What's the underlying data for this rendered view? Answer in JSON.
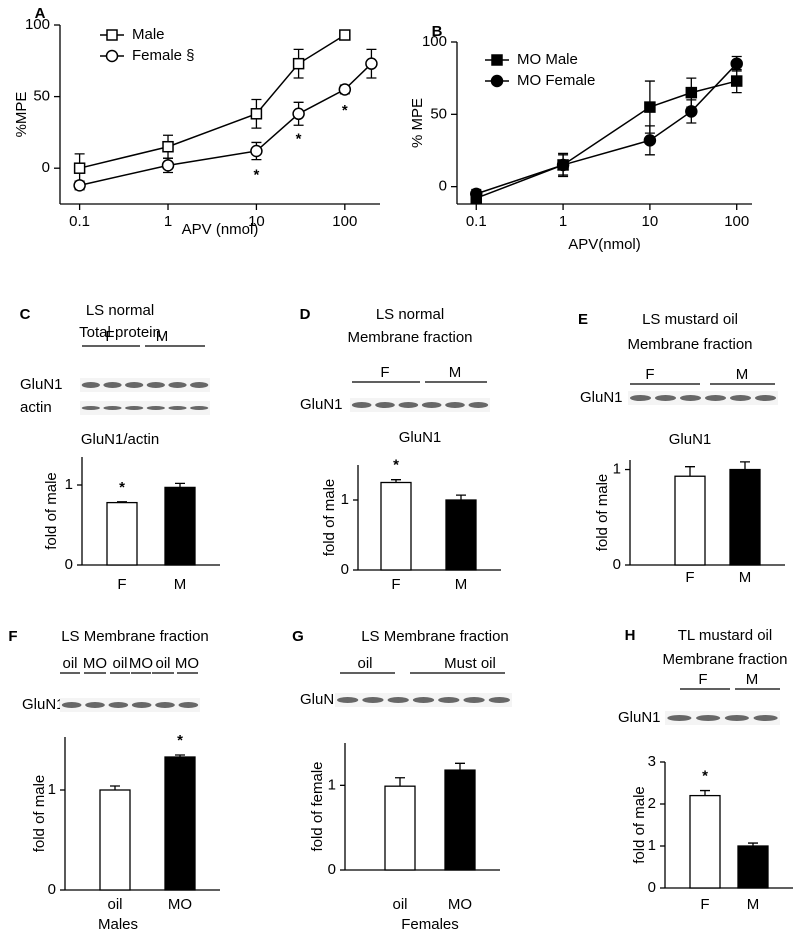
{
  "chart_data": [
    {
      "type": "line",
      "panel": "A",
      "xlabel": "APV (nmol)",
      "ylabel": "%MPE",
      "xscale": "log",
      "xlim": [
        0.06,
        250
      ],
      "xticks": [
        0.1,
        1,
        10,
        100
      ],
      "ylim": [
        -25,
        100
      ],
      "yticks": [
        0,
        50,
        100
      ],
      "series": [
        {
          "name": "Male",
          "marker": "square",
          "color": "#000000",
          "fill": "#ffffff",
          "x": [
            0.1,
            1,
            10,
            30,
            100
          ],
          "values": [
            0,
            15,
            38,
            73,
            93
          ],
          "errors": [
            10,
            8,
            10,
            10,
            2
          ]
        },
        {
          "name": "Female §",
          "marker": "circle",
          "color": "#000000",
          "fill": "#ffffff",
          "x": [
            0.1,
            1,
            10,
            30,
            100,
            200
          ],
          "values": [
            -12,
            2,
            12,
            38,
            55,
            73
          ],
          "errors": [
            3,
            5,
            6,
            8,
            3,
            10
          ]
        }
      ],
      "annotations": [
        {
          "text": "*",
          "x": 10,
          "y": -5
        },
        {
          "text": "*",
          "x": 30,
          "y": 20
        },
        {
          "text": "*",
          "x": 100,
          "y": 40
        }
      ]
    },
    {
      "type": "line",
      "panel": "B",
      "xlabel": "APV(nmol)",
      "ylabel": "% MPE",
      "xscale": "log",
      "xlim": [
        0.06,
        150
      ],
      "xticks": [
        0.1,
        1,
        10,
        100
      ],
      "ylim": [
        -12,
        100
      ],
      "yticks": [
        0,
        50,
        100
      ],
      "series": [
        {
          "name": "MO Male",
          "marker": "square",
          "color": "#000000",
          "fill": "#000000",
          "x": [
            0.1,
            1,
            10,
            30,
            100
          ],
          "values": [
            -8,
            15,
            55,
            65,
            73
          ],
          "errors": [
            3,
            8,
            18,
            10,
            8
          ]
        },
        {
          "name": "MO Female",
          "marker": "circle",
          "color": "#000000",
          "fill": "#000000",
          "x": [
            0.1,
            1,
            10,
            30,
            100
          ],
          "values": [
            -5,
            15,
            32,
            52,
            85
          ],
          "errors": [
            3,
            7,
            10,
            8,
            5
          ]
        }
      ]
    },
    {
      "type": "bar",
      "panel": "C",
      "title": "LS normal",
      "subtitle": "Total protein",
      "lanes": [
        "F",
        "M"
      ],
      "rows": [
        "GluN1",
        "actin"
      ],
      "chart_title": "GluN1/actin",
      "ylabel": "fold of male",
      "categories": [
        "F",
        "M"
      ],
      "values": [
        0.78,
        0.97
      ],
      "errors": [
        0.01,
        0.05
      ],
      "colors": [
        "#ffffff",
        "#000000"
      ],
      "ylim": [
        0,
        1.35
      ],
      "yticks": [
        0,
        1
      ],
      "annotations": [
        {
          "text": "*",
          "category": 0
        }
      ]
    },
    {
      "type": "bar",
      "panel": "D",
      "title": "LS normal",
      "subtitle": "Membrane fraction",
      "lanes": [
        "F",
        "M"
      ],
      "rows": [
        "GluN1"
      ],
      "chart_title": "GluN1",
      "ylabel": "fold of male",
      "categories": [
        "F",
        "M"
      ],
      "values": [
        1.25,
        1.0
      ],
      "errors": [
        0.04,
        0.07
      ],
      "colors": [
        "#ffffff",
        "#000000"
      ],
      "ylim": [
        0,
        1.5
      ],
      "yticks": [
        0,
        1
      ],
      "annotations": [
        {
          "text": "*",
          "category": 0
        }
      ]
    },
    {
      "type": "bar",
      "panel": "E",
      "title": "LS mustard oil",
      "subtitle": "Membrane fraction",
      "lanes": [
        "F",
        "M"
      ],
      "rows": [
        "GluN1"
      ],
      "chart_title": "GluN1",
      "ylabel": "fold of male",
      "categories": [
        "F",
        "M"
      ],
      "values": [
        0.93,
        1.0
      ],
      "errors": [
        0.1,
        0.08
      ],
      "colors": [
        "#ffffff",
        "#000000"
      ],
      "ylim": [
        0,
        1.1
      ],
      "yticks": [
        0,
        1
      ]
    },
    {
      "type": "bar",
      "panel": "F",
      "title": "LS Membrane fraction",
      "lanes": [
        "oil",
        "MO",
        "oil",
        "MO",
        "oil",
        "MO"
      ],
      "rows": [
        "GluN1"
      ],
      "ylabel": "fold of male",
      "xlabel": "Males",
      "categories": [
        "oil",
        "MO"
      ],
      "values": [
        1.0,
        1.33
      ],
      "errors": [
        0.04,
        0.02
      ],
      "colors": [
        "#ffffff",
        "#000000"
      ],
      "ylim": [
        0,
        1.53
      ],
      "yticks": [
        0,
        1
      ],
      "annotations": [
        {
          "text": "*",
          "category": 1
        }
      ]
    },
    {
      "type": "bar",
      "panel": "G",
      "title": "LS Membrane fraction",
      "lanes": [
        "oil",
        "Must oil"
      ],
      "rows": [
        "GluN1"
      ],
      "ylabel": "fold of female",
      "xlabel": "Females",
      "categories": [
        "oil",
        "MO"
      ],
      "values": [
        0.99,
        1.18
      ],
      "errors": [
        0.1,
        0.08
      ],
      "colors": [
        "#ffffff",
        "#000000"
      ],
      "ylim": [
        0,
        1.5
      ],
      "yticks": [
        0,
        1
      ]
    },
    {
      "type": "bar",
      "panel": "H",
      "title": "TL mustard oil",
      "subtitle": "Membrane fraction",
      "lanes": [
        "F",
        "M"
      ],
      "rows": [
        "GluN1"
      ],
      "ylabel": "fold of male",
      "categories": [
        "F",
        "M"
      ],
      "values": [
        2.2,
        1.0
      ],
      "errors": [
        0.12,
        0.07
      ],
      "colors": [
        "#ffffff",
        "#000000"
      ],
      "ylim": [
        0,
        3
      ],
      "yticks": [
        0,
        1,
        2,
        3
      ],
      "annotations": [
        {
          "text": "*",
          "category": 0
        }
      ]
    }
  ]
}
